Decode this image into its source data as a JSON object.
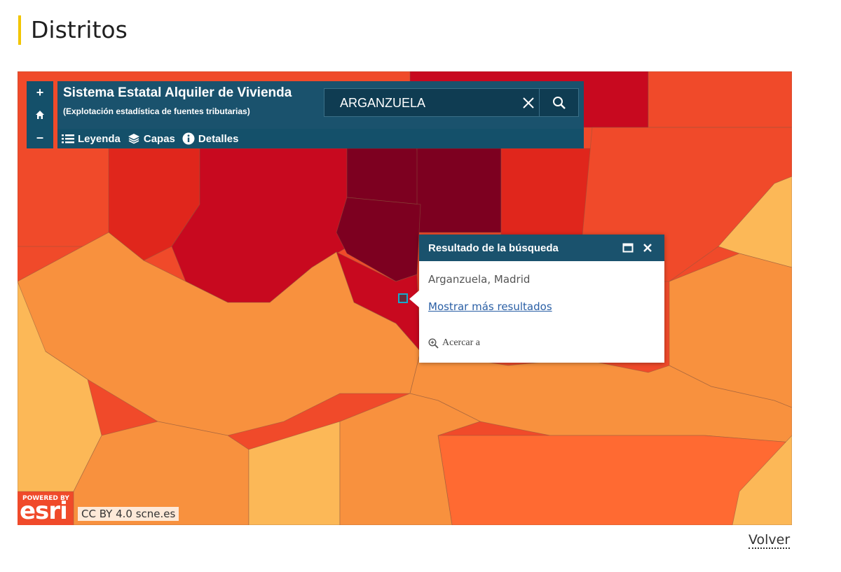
{
  "page": {
    "title": "Distritos",
    "back_link": "Volver"
  },
  "app": {
    "title": "Sistema Estatal Alquiler de Vivienda",
    "subtitle": "(Explotación estadística de fuentes tributarias)"
  },
  "search": {
    "value": "ARGANZUELA"
  },
  "zoom_controls": {
    "zoom_in": "+",
    "zoom_out": "–"
  },
  "toolbar": {
    "legend": "Leyenda",
    "layers": "Capas",
    "details": "Detalles"
  },
  "popup": {
    "title": "Resultado de la búsqueda",
    "result": "Arganzuela, Madrid",
    "more_results": "Mostrar más resultados",
    "zoom_to": "Acercar a"
  },
  "map_footer": {
    "powered_by": "POWERED BY",
    "esri": "esri",
    "attribution": "CC BY 4.0 scne.es"
  },
  "colors": {
    "header": "#1a526d",
    "accent": "#f2c500",
    "darkest": "#7d0020",
    "dark_red": "#c8091f",
    "red": "#e0261c",
    "red_orange": "#f04a2a",
    "orange": "#f8913e",
    "light_orange": "#fcb857"
  },
  "icons": [
    "home-icon",
    "clear-icon",
    "search-icon",
    "list-icon",
    "layers-icon",
    "info-icon",
    "maximize-icon",
    "close-icon",
    "zoom-to-icon"
  ]
}
